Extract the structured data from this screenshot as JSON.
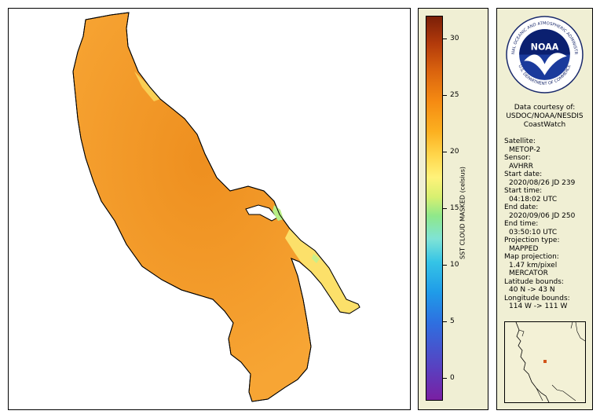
{
  "map": {
    "lake_fill": "#f7a534",
    "lake_dark": "#ee8f1f",
    "shore_light": "#fce06a",
    "shore_green": "#b7ee86",
    "outline": "#000000"
  },
  "colorbar": {
    "title": "SST CLOUD MASKED (celsius)",
    "ticks": [
      {
        "value": 30,
        "label": "30"
      },
      {
        "value": 25,
        "label": "25"
      },
      {
        "value": 20,
        "label": "20"
      },
      {
        "value": 15,
        "label": "15"
      },
      {
        "value": 10,
        "label": "10"
      },
      {
        "value": 5,
        "label": "5"
      },
      {
        "value": 0,
        "label": "0"
      }
    ],
    "min": -2,
    "max": 32
  },
  "logo": {
    "center_text": "NOAA",
    "ring_top": "NATIONAL OCEANIC AND ATMOSPHERIC ADMINISTRATION",
    "ring_bottom": "U.S. DEPARTMENT OF COMMERCE"
  },
  "info": {
    "courtesy_1": "Data courtesy of:",
    "courtesy_2": "USDOC/NOAA/NESDIS",
    "courtesy_3": "CoastWatch",
    "satellite_label": "Satellite:",
    "satellite_value": "METOP-2",
    "sensor_label": "Sensor:",
    "sensor_value": "AVHRR",
    "start_date_label": "Start date:",
    "start_date_value": "2020/08/26 JD 239",
    "start_time_label": "Start time:",
    "start_time_value": "04:18:02 UTC",
    "end_date_label": "End date:",
    "end_date_value": "2020/09/06 JD 250",
    "end_time_label": "End time:",
    "end_time_value": "03:50:10 UTC",
    "projection_label": "Projection type:",
    "projection_value": "MAPPED",
    "map_projection_label": "Map projection:",
    "map_projection_value_1": "1.47 km/pixel",
    "map_projection_value_2": "MERCATOR",
    "lat_label": "Latitude bounds:",
    "lat_value": "40 N -> 43 N",
    "lon_label": "Longitude bounds:",
    "lon_value": "114 W -> 111 W"
  }
}
